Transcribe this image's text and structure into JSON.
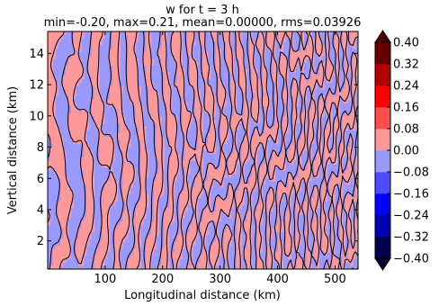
{
  "chart_data": {
    "type": "contour",
    "title": "w for t = 3 h",
    "subtitle": "min=-0.20, max=0.21, mean=0.00000, rms=0.03926",
    "xlabel": "Longitudinal distance (km)",
    "ylabel": "Vertical distance (km)",
    "xlim": [
      0,
      540
    ],
    "ylim": [
      0.2,
      15.4
    ],
    "x_ticks": [
      100,
      200,
      300,
      400,
      500
    ],
    "y_ticks": [
      2,
      4,
      6,
      8,
      10,
      12,
      14
    ],
    "grid": false,
    "field_summary": {
      "min": -0.2,
      "max": 0.21,
      "mean": 0.0,
      "rms": 0.03926
    },
    "colorbar": {
      "placement": "right",
      "extend": "both",
      "levels": [
        -0.4,
        -0.32,
        -0.24,
        -0.16,
        -0.08,
        0.0,
        0.08,
        0.16,
        0.24,
        0.32,
        0.4
      ],
      "tick_labels": [
        "−0.40",
        "−0.32",
        "−0.24",
        "−0.16",
        "−0.08",
        "0.00",
        "0.08",
        "0.16",
        "0.24",
        "0.32",
        "0.40"
      ],
      "colors": [
        "#00004c",
        "#0000b3",
        "#0000ff",
        "#4d4dff",
        "#9999ff",
        "#ff9999",
        "#ff4d4d",
        "#ff0000",
        "#b30000",
        "#660000"
      ],
      "under_color": "#000033",
      "over_color": "#4c0000"
    },
    "visible_bands": {
      "negative_color": "#9999ff",
      "positive_color": "#ff9999",
      "contour_color": "#000000"
    }
  }
}
